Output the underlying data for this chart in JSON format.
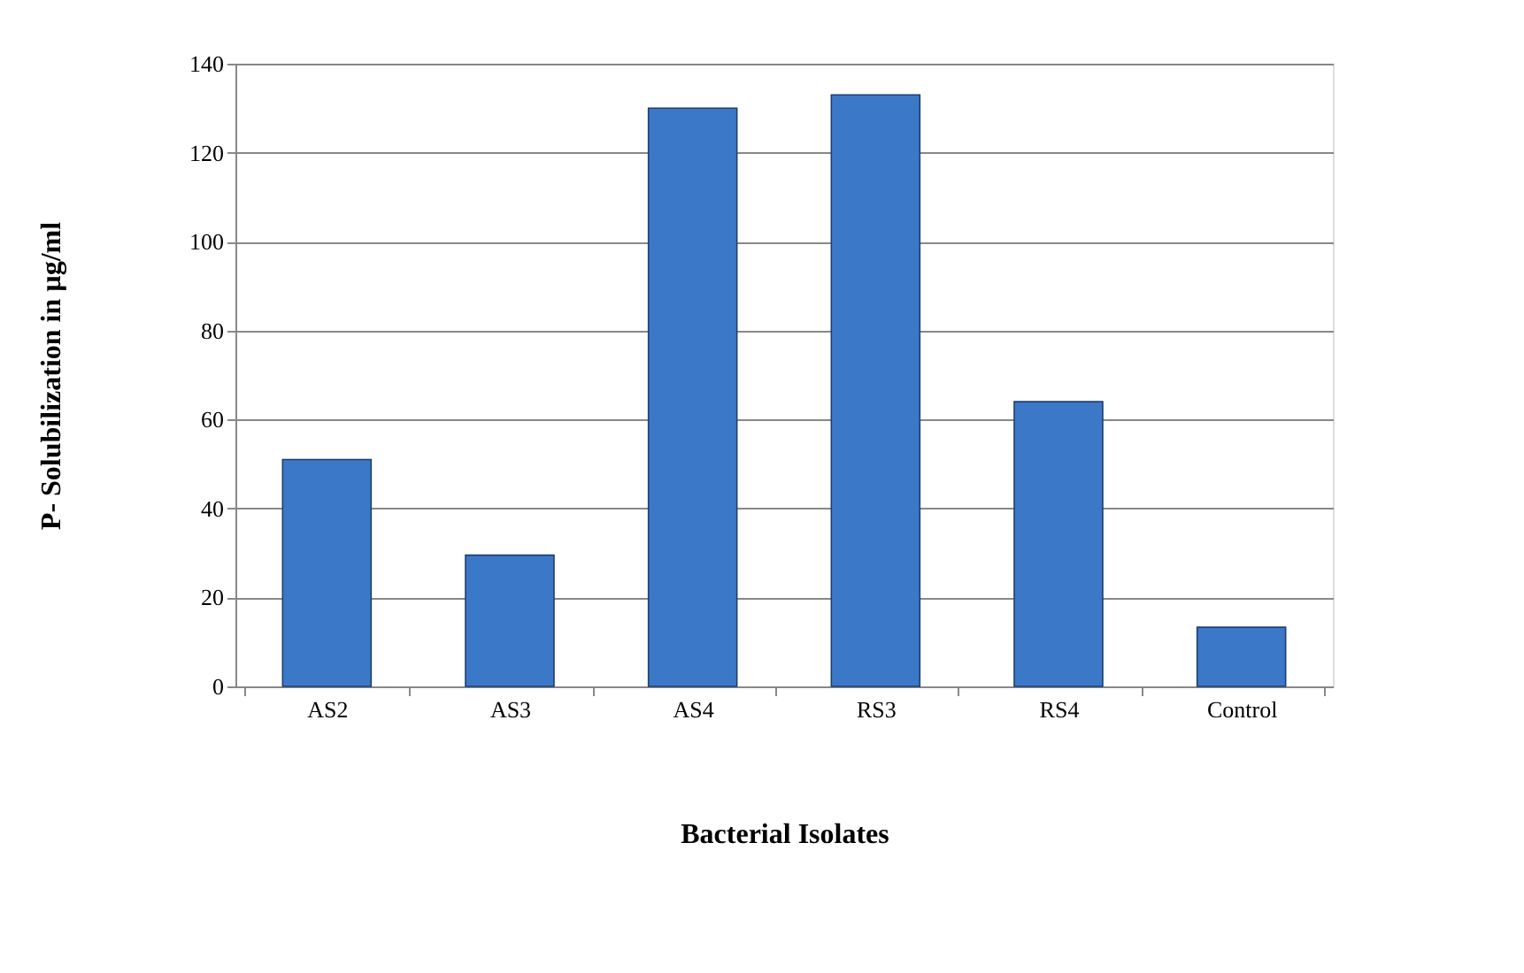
{
  "chart_data": {
    "type": "bar",
    "xlabel": "Bacterial Isolates",
    "ylabel": "P- Solubilization in µg/ml",
    "categories": [
      "AS2",
      "AS3",
      "AS4",
      "RS3",
      "RS4",
      "Control"
    ],
    "values": [
      51,
      29.5,
      130,
      133,
      64,
      13.3
    ],
    "color": "#3c78c8",
    "ylim": [
      0,
      140
    ],
    "yticks": [
      0,
      20,
      40,
      60,
      80,
      100,
      120,
      140
    ],
    "grid": "y"
  }
}
